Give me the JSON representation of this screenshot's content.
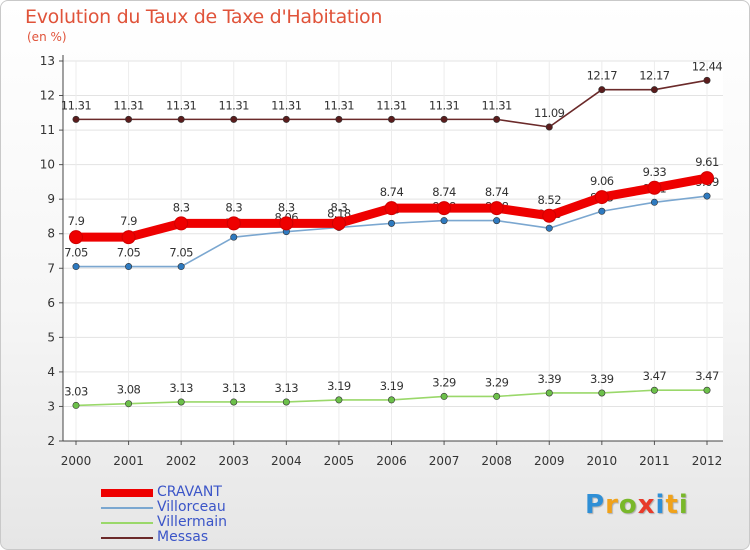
{
  "chart_data": {
    "type": "line",
    "title": "Evolution du Taux de Taxe d'Habitation",
    "ylabel": "(en %)",
    "xlabel": "",
    "ylim": [
      2,
      13
    ],
    "yticks": [
      "2",
      "3",
      "4",
      "5",
      "6",
      "7",
      "8",
      "9",
      "10",
      "11",
      "12",
      "13"
    ],
    "categories": [
      "2000",
      "2001",
      "2002",
      "2003",
      "2004",
      "2005",
      "2006",
      "2007",
      "2008",
      "2009",
      "2010",
      "2011",
      "2012"
    ],
    "series": [
      {
        "name": "Messas",
        "color": "#6b2a2a",
        "marker": "#5a1c1c",
        "values": [
          11.31,
          11.31,
          11.31,
          11.31,
          11.31,
          11.31,
          11.31,
          11.31,
          11.31,
          11.09,
          12.17,
          12.17,
          12.44
        ],
        "labels": [
          "11.31",
          "11.31",
          "11.31",
          "11.31",
          "11.31",
          "11.31",
          "11.31",
          "11.31",
          "11.31",
          "11.09",
          "12.17",
          "12.17",
          "12.44"
        ]
      },
      {
        "name": "Villorceau",
        "color": "#7ba7d0",
        "marker": "#2e7ac0",
        "values": [
          7.05,
          7.05,
          7.05,
          7.9,
          8.06,
          8.18,
          8.3,
          8.38,
          8.38,
          8.16,
          8.65,
          8.91,
          9.09
        ],
        "labels": [
          "7.05",
          "7.05",
          "7.05",
          "7.9",
          "8.06",
          "8.18",
          "8.3",
          "8.38",
          "8.38",
          "8.16",
          "8.65",
          "8.91",
          "9.09"
        ]
      },
      {
        "name": "Villermain",
        "color": "#9ad86a",
        "marker": "#6cc04a",
        "values": [
          3.03,
          3.08,
          3.13,
          3.13,
          3.13,
          3.19,
          3.19,
          3.29,
          3.29,
          3.39,
          3.39,
          3.47,
          3.47
        ],
        "labels": [
          "3.03",
          "3.08",
          "3.13",
          "3.13",
          "3.13",
          "3.19",
          "3.19",
          "3.29",
          "3.29",
          "3.39",
          "3.39",
          "3.47",
          "3.47"
        ]
      },
      {
        "name": "CRAVANT",
        "color": "#ee0000",
        "marker": "#ee0000",
        "thick": true,
        "values": [
          7.9,
          7.9,
          8.3,
          8.3,
          8.3,
          8.3,
          8.74,
          8.74,
          8.74,
          8.52,
          9.06,
          9.33,
          9.61
        ],
        "labels": [
          "7.9",
          "7.9",
          "8.3",
          "8.3",
          "8.3",
          "8.3",
          "8.74",
          "8.74",
          "8.74",
          "8.52",
          "9.06",
          "9.33",
          "9.61"
        ]
      }
    ]
  },
  "legend": [
    {
      "label": "CRAVANT",
      "color": "#ee0000",
      "thick": true
    },
    {
      "label": "Villorceau",
      "color": "#7ba7d0"
    },
    {
      "label": "Villermain",
      "color": "#9ad86a"
    },
    {
      "label": "Messas",
      "color": "#6b2a2a"
    }
  ],
  "logo": {
    "letters": [
      "P",
      "r",
      "o",
      "x",
      "i",
      "t",
      "i"
    ],
    "colors": [
      "#2f8fd6",
      "#f0a21a",
      "#79b82a",
      "#e83a2a",
      "#2f8fd6",
      "#f0a21a",
      "#79b82a"
    ]
  }
}
